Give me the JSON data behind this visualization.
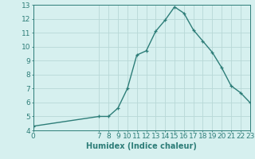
{
  "x": [
    0,
    7,
    8,
    9,
    10,
    11,
    12,
    13,
    14,
    15,
    16,
    17,
    18,
    19,
    20,
    21,
    22,
    23
  ],
  "y": [
    4.3,
    5.0,
    5.0,
    5.6,
    7.0,
    9.4,
    9.7,
    11.1,
    11.9,
    12.85,
    12.4,
    11.2,
    10.4,
    9.6,
    8.5,
    7.2,
    6.7,
    6.0
  ],
  "line_color": "#2d7d78",
  "marker": "+",
  "xlabel": "Humidex (Indice chaleur)",
  "xlim": [
    0,
    23
  ],
  "ylim": [
    4,
    13
  ],
  "yticks": [
    4,
    5,
    6,
    7,
    8,
    9,
    10,
    11,
    12,
    13
  ],
  "xticks": [
    0,
    7,
    8,
    9,
    10,
    11,
    12,
    13,
    14,
    15,
    16,
    17,
    18,
    19,
    20,
    21,
    22,
    23
  ],
  "bg_color": "#d6f0ef",
  "grid_color": "#b8d8d6",
  "axis_fontsize": 7,
  "tick_fontsize": 6.5
}
